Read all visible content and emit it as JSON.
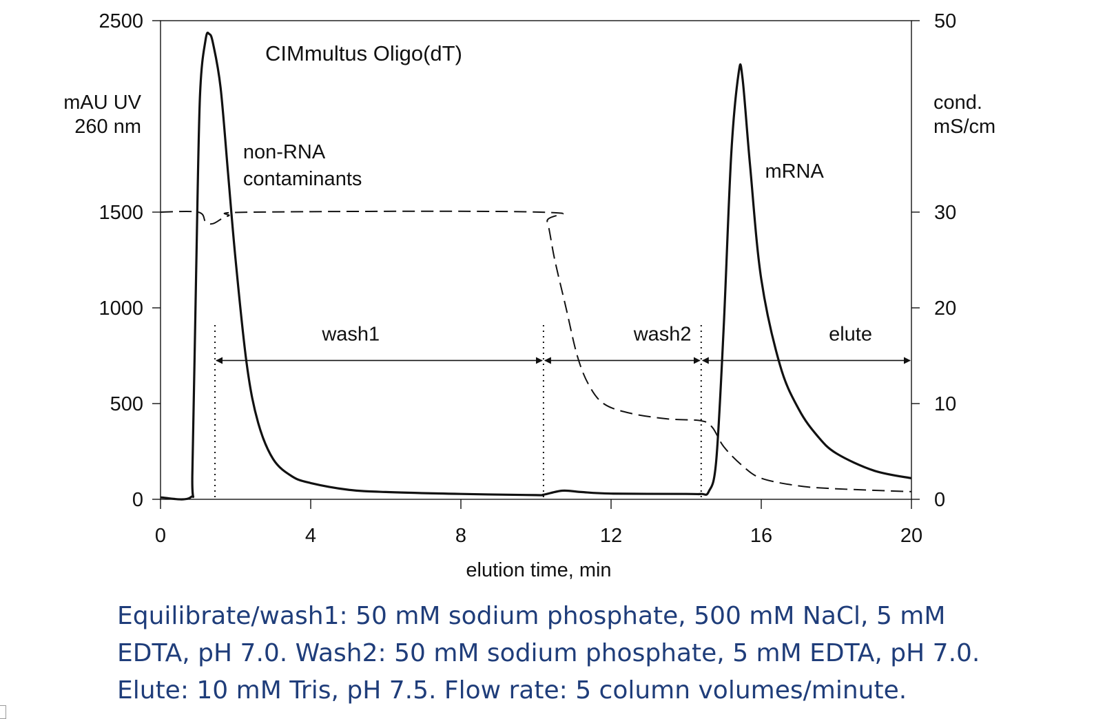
{
  "chart_data": {
    "type": "line",
    "title": "CIMmultus Oligo(dT)",
    "xlabel": "elution time, min",
    "ylabel_left": [
      "mAU UV",
      "260 nm"
    ],
    "ylabel_right": [
      "cond.",
      "mS/cm"
    ],
    "xlim": [
      0,
      20
    ],
    "ylim_left": [
      0,
      2500
    ],
    "ylim_right": [
      0,
      50
    ],
    "xticks": [
      "0",
      "4",
      "8",
      "12",
      "16",
      "20"
    ],
    "yticks_left": [
      "0",
      "500",
      "1000",
      "1500",
      "2500"
    ],
    "yticks_right": [
      "0",
      "10",
      "20",
      "30",
      "50"
    ],
    "grid": false,
    "series": [
      {
        "name": "UV",
        "axis": "left",
        "style": "solid",
        "points": [
          [
            0,
            10
          ],
          [
            0.8,
            10
          ],
          [
            0.85,
            150
          ],
          [
            0.95,
            1200
          ],
          [
            1.05,
            2100
          ],
          [
            1.2,
            2400
          ],
          [
            1.3,
            2430
          ],
          [
            1.4,
            2380
          ],
          [
            1.6,
            2150
          ],
          [
            1.8,
            1700
          ],
          [
            2.0,
            1250
          ],
          [
            2.3,
            700
          ],
          [
            2.6,
            400
          ],
          [
            3.0,
            210
          ],
          [
            3.5,
            120
          ],
          [
            4.0,
            85
          ],
          [
            5.0,
            50
          ],
          [
            6.0,
            38
          ],
          [
            8.0,
            28
          ],
          [
            10.0,
            22
          ],
          [
            10.2,
            24
          ],
          [
            10.7,
            45
          ],
          [
            11.2,
            38
          ],
          [
            12.0,
            30
          ],
          [
            14.0,
            28
          ],
          [
            14.4,
            28
          ],
          [
            14.6,
            40
          ],
          [
            14.8,
            200
          ],
          [
            15.0,
            900
          ],
          [
            15.2,
            1800
          ],
          [
            15.4,
            2230
          ],
          [
            15.5,
            2200
          ],
          [
            15.7,
            1750
          ],
          [
            16.0,
            1150
          ],
          [
            16.5,
            700
          ],
          [
            17.0,
            470
          ],
          [
            17.5,
            330
          ],
          [
            18.0,
            240
          ],
          [
            19.0,
            150
          ],
          [
            20.0,
            110
          ]
        ]
      },
      {
        "name": "conductivity",
        "axis": "right",
        "style": "dashed",
        "points": [
          [
            0,
            30
          ],
          [
            1.0,
            30
          ],
          [
            1.2,
            29.0
          ],
          [
            1.4,
            28.8
          ],
          [
            1.8,
            29.6
          ],
          [
            2.5,
            30
          ],
          [
            10.1,
            30
          ],
          [
            10.3,
            29
          ],
          [
            10.5,
            25
          ],
          [
            10.8,
            20
          ],
          [
            11.1,
            15
          ],
          [
            11.4,
            12
          ],
          [
            11.8,
            10
          ],
          [
            12.5,
            9.0
          ],
          [
            13.5,
            8.4
          ],
          [
            14.4,
            8.2
          ],
          [
            14.7,
            7.5
          ],
          [
            15.0,
            5.5
          ],
          [
            15.5,
            3.5
          ],
          [
            16.0,
            2.2
          ],
          [
            17.0,
            1.4
          ],
          [
            18.0,
            1.1
          ],
          [
            20.0,
            0.8
          ]
        ]
      }
    ],
    "annotations": [
      {
        "text": "non-RNA",
        "x": 2.2,
        "y_left": 1780
      },
      {
        "text": "contaminants",
        "x": 2.2,
        "y_left": 1640
      },
      {
        "text": "mRNA",
        "x": 16.1,
        "y_left": 1680
      },
      {
        "text": "wash1",
        "x": 4.3,
        "y_left": 830
      },
      {
        "text": "wash2",
        "x": 12.6,
        "y_left": 830
      },
      {
        "text": "elute",
        "x": 17.8,
        "y_left": 830
      }
    ],
    "phase_markers": [
      1.45,
      10.2,
      14.4
    ],
    "phase_arrows": [
      {
        "from": 1.45,
        "to": 10.2,
        "y_left": 725
      },
      {
        "from": 10.2,
        "to": 14.4,
        "y_left": 725
      },
      {
        "from": 14.4,
        "to": 20,
        "y_left": 725
      }
    ]
  },
  "caption": {
    "line1": "Equilibrate/wash1: 50 mM sodium phosphate, 500 mM NaCl, 5 mM",
    "line2": "EDTA, pH 7.0. Wash2: 50 mM sodium phosphate, 5 mM EDTA, pH 7.0.",
    "line3": "Elute: 10 mM Tris, pH 7.5. Flow rate: 5 column volumes/minute."
  },
  "colors": {
    "caption": "#1f3d7a",
    "lines": "#111111"
  }
}
